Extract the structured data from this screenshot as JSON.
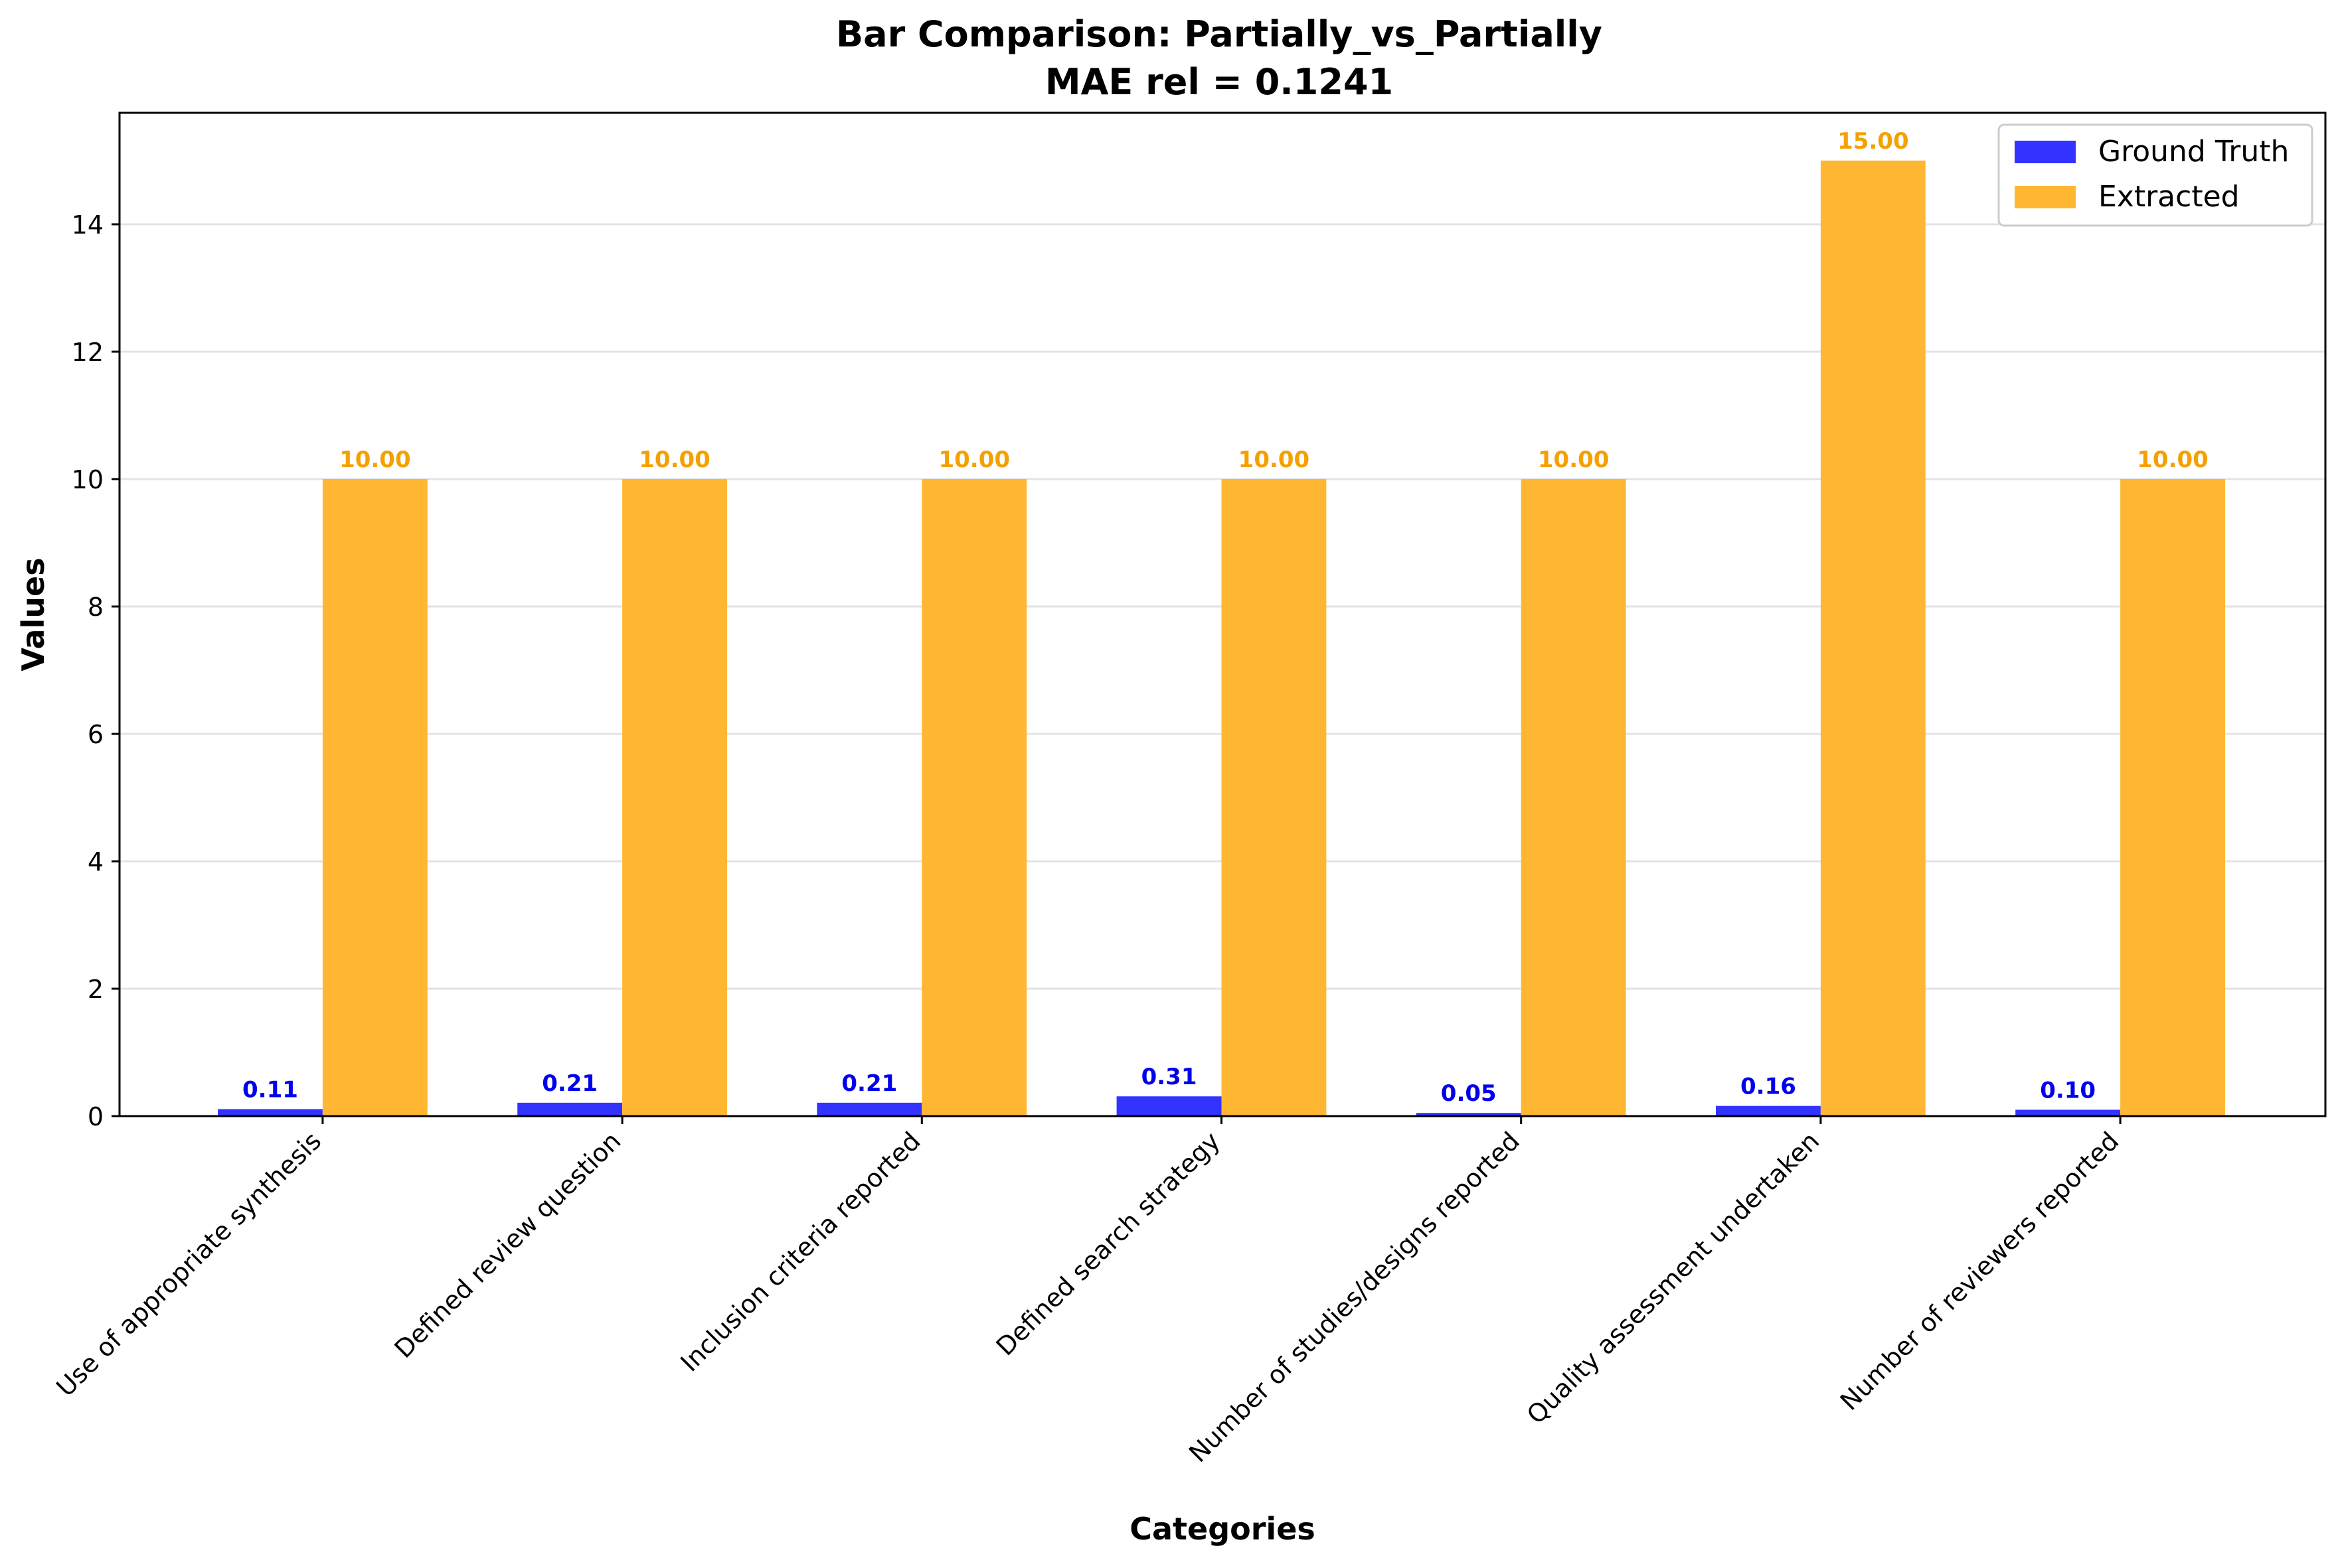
{
  "chart_data": {
    "type": "bar",
    "title": "Bar Comparison: Partially_vs_Partially",
    "subtitle": "MAE rel = 0.1241",
    "xlabel": "Categories",
    "ylabel": "Values",
    "ylim": [
      0,
      15.75
    ],
    "yticks": [
      0,
      2,
      4,
      6,
      8,
      10,
      12,
      14
    ],
    "grid": "horizontal",
    "legend_position": "top-right",
    "categories": [
      "Use of appropriate synthesis",
      "Defined review question",
      "Inclusion criteria reported",
      "Defined search strategy",
      "Number of studies/designs reported",
      "Quality assessment undertaken",
      "Number of reviewers reported"
    ],
    "series": [
      {
        "name": "Ground Truth",
        "color": "#3333ff",
        "label_color": "#0000ee",
        "values": [
          0.11,
          0.21,
          0.21,
          0.31,
          0.05,
          0.16,
          0.1
        ],
        "value_labels": [
          "0.11",
          "0.21",
          "0.21",
          "0.31",
          "0.05",
          "0.16",
          "0.10"
        ]
      },
      {
        "name": "Extracted",
        "color": "#ffb733",
        "label_color": "#f5a000",
        "values": [
          10,
          10,
          10,
          10,
          10,
          15,
          10
        ],
        "value_labels": [
          "10.00",
          "10.00",
          "10.00",
          "10.00",
          "10.00",
          "15.00",
          "10.00"
        ]
      }
    ]
  }
}
